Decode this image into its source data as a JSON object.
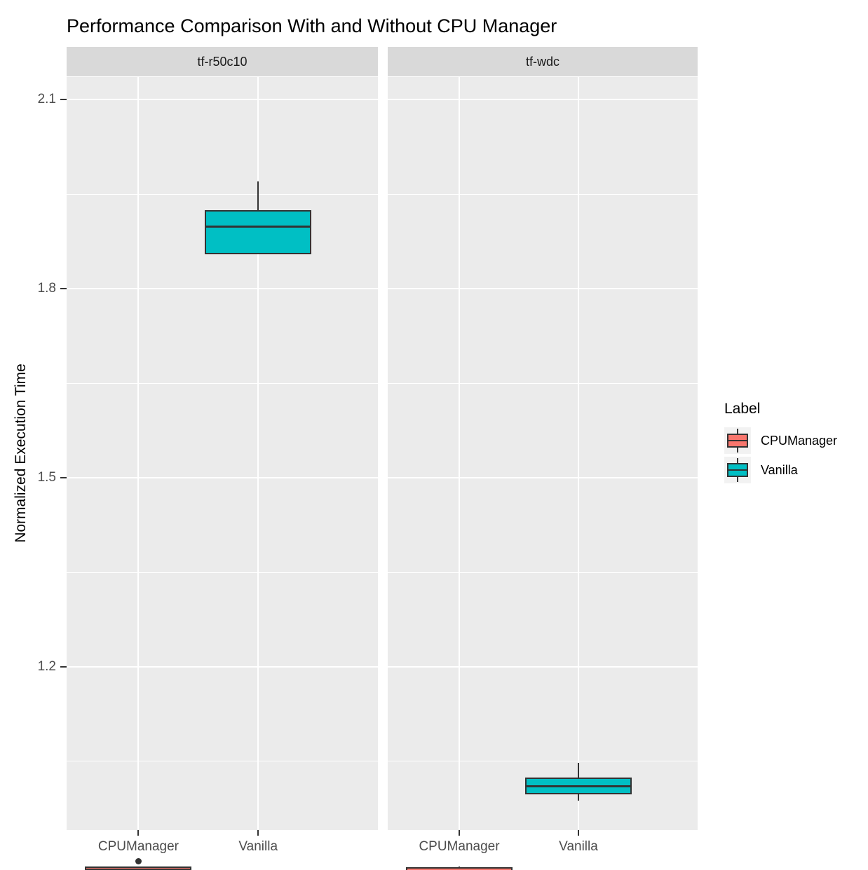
{
  "title": "Performance Comparison With and Without CPU Manager",
  "y_axis": {
    "label": "Normalized Execution Time",
    "ticks": [
      2.1,
      1.8,
      1.5,
      1.2
    ],
    "minor_ticks": [
      1.95,
      1.65,
      1.35,
      1.05
    ]
  },
  "x_axis": {
    "categories": [
      "CPUManager",
      "Vanilla"
    ]
  },
  "legend": {
    "title": "Label",
    "entries": [
      {
        "label": "CPUManager",
        "color": "#F8766D"
      },
      {
        "label": "Vanilla",
        "color": "#00BFC4"
      }
    ]
  },
  "colors": {
    "panel_bg": "#EBEBEB",
    "strip_bg": "#D9D9D9",
    "gridline": "#FFFFFF",
    "box_outline": "#333333",
    "axis_text": "#4D4D4D",
    "legend_key_bg": "#F2F2F2",
    "cpumanager_fill": "#F8766D",
    "vanilla_fill": "#00BFC4"
  },
  "chart_data": {
    "type": "boxplot",
    "title": "Performance Comparison With and Without CPU Manager",
    "xlabel": "",
    "ylabel": "Normalized Execution Time",
    "ylim": [
      0.94,
      2.14
    ],
    "y_major_ticks": [
      1.2,
      1.5,
      1.8,
      2.1
    ],
    "y_minor_ticks": [
      1.05,
      1.35,
      1.65,
      1.95
    ],
    "categories": [
      "CPUManager",
      "Vanilla"
    ],
    "series_colors": {
      "CPUManager": "#F8766D",
      "Vanilla": "#00BFC4"
    },
    "legend_position": "right",
    "grid": true,
    "facets": [
      {
        "name": "tf-r50c10",
        "boxes": [
          {
            "category": "CPUManager",
            "min": 0.99,
            "q1": 0.996,
            "median": 1.0,
            "q3": 1.006,
            "max": 1.006,
            "outliers": [
              1.014
            ]
          },
          {
            "category": "Vanilla",
            "min": 1.977,
            "q1": 1.977,
            "median": 2.021,
            "q3": 2.047,
            "max": 2.093,
            "outliers": []
          }
        ]
      },
      {
        "name": "tf-wdc",
        "boxes": [
          {
            "category": "CPUManager",
            "min": 0.994,
            "q1": 0.994,
            "median": 0.998,
            "q3": 1.004,
            "max": 1.006,
            "outliers": []
          },
          {
            "category": "Vanilla",
            "min": 1.11,
            "q1": 1.12,
            "median": 1.133,
            "q3": 1.147,
            "max": 1.17,
            "outliers": []
          }
        ]
      }
    ]
  }
}
